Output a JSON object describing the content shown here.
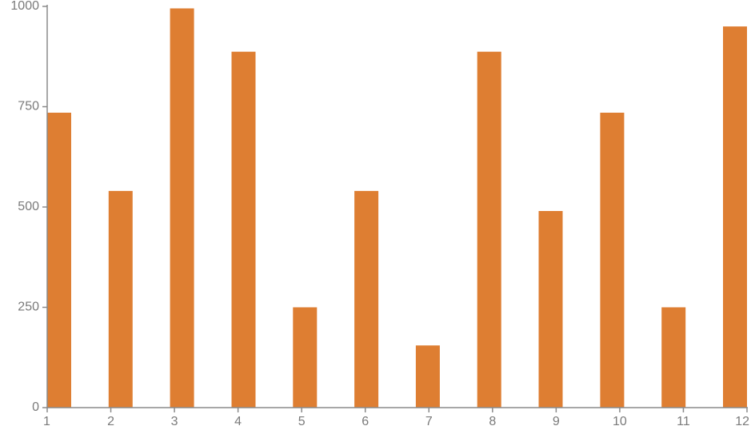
{
  "chart_data": {
    "type": "bar",
    "title": "",
    "xlabel": "",
    "ylabel": "",
    "x": [
      1,
      2,
      3,
      4,
      5,
      6,
      7,
      8,
      9,
      10,
      11,
      12
    ],
    "values": [
      735,
      540,
      995,
      887,
      250,
      540,
      155,
      887,
      490,
      735,
      250,
      950
    ],
    "ylim": [
      0,
      1000
    ],
    "yticks": [
      0,
      250,
      500,
      750,
      1000
    ],
    "xticks": [
      1,
      2,
      3,
      4,
      5,
      6,
      7,
      8,
      9,
      10,
      11,
      12
    ],
    "grid": false,
    "legend": "none",
    "bar_color": "#de7e32",
    "axis_color": "#8a8a8a",
    "label_color": "#7a7a7a"
  }
}
